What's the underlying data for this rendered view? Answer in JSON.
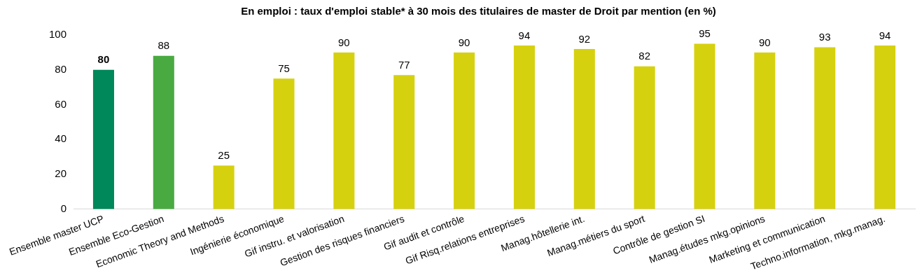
{
  "chart_data": {
    "type": "bar",
    "title": "En emploi : taux d'emploi stable* à 30 mois des titulaires de master de Droit par mention (en %)",
    "categories": [
      "Ensemble master UCP",
      "Ensemble Eco-Gestion",
      "Economic Theory and Methods",
      "Ingénierie économique",
      "Gif instru. et valorisation",
      "Gestion des risques financiers",
      "Gif audit et contrôle",
      "Gif Risq.relations entreprises",
      "Manag.hôtellerie int.",
      "Manag.métiers du sport",
      "Contrôle de gestion SI",
      "Manag.études mkg.opinions",
      "Marketing et communication",
      "Techno.information, mkg.manag."
    ],
    "values": [
      80,
      88,
      25,
      75,
      90,
      77,
      90,
      94,
      92,
      82,
      95,
      90,
      93,
      94
    ],
    "colors": [
      "#00875a",
      "#4aaa42",
      "#d6d10f",
      "#d6d10f",
      "#d6d10f",
      "#d6d10f",
      "#d6d10f",
      "#d6d10f",
      "#d6d10f",
      "#d6d10f",
      "#d6d10f",
      "#d6d10f",
      "#d6d10f",
      "#d6d10f"
    ],
    "ylim": [
      0,
      100
    ],
    "yticks": [
      0,
      20,
      40,
      60,
      80,
      100
    ],
    "grid": false,
    "legend": false,
    "data_labels": true
  }
}
